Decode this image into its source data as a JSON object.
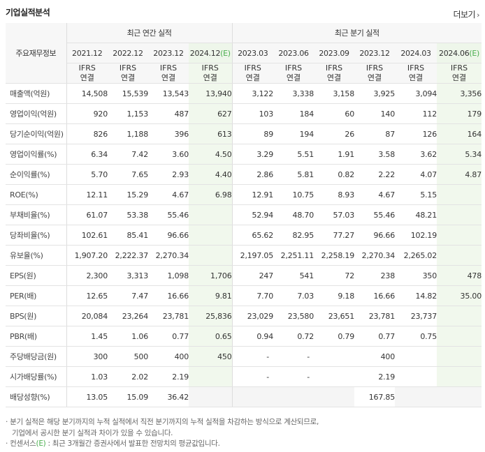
{
  "header": {
    "title": "기업실적분석",
    "more_label": "더보기"
  },
  "table": {
    "row_header_label": "주요재무정보",
    "groups": {
      "annual": "최근 연간 실적",
      "quarter": "최근 분기 실적"
    },
    "annual_periods": [
      "2021.12",
      "2022.12",
      "2023.12",
      "2024.12"
    ],
    "quarter_periods": [
      "2023.03",
      "2023.06",
      "2023.09",
      "2023.12",
      "2024.03",
      "2024.06"
    ],
    "estimate_mark": "(E)",
    "ifrs_label": "IFRS",
    "basis_label": "연결",
    "rows": [
      {
        "label": "매출액(억원)",
        "values": [
          "14,508",
          "15,539",
          "13,543",
          "13,940",
          "3,122",
          "3,338",
          "3,158",
          "3,925",
          "3,094",
          "3,356"
        ]
      },
      {
        "label": "영업이익(억원)",
        "values": [
          "920",
          "1,153",
          "487",
          "627",
          "103",
          "184",
          "60",
          "140",
          "112",
          "179"
        ]
      },
      {
        "label": "당기순이익(억원)",
        "values": [
          "826",
          "1,188",
          "396",
          "613",
          "89",
          "194",
          "26",
          "87",
          "126",
          "164"
        ]
      },
      {
        "label": "영업이익률(%)",
        "values": [
          "6.34",
          "7.42",
          "3.60",
          "4.50",
          "3.29",
          "5.51",
          "1.91",
          "3.58",
          "3.62",
          "5.34"
        ]
      },
      {
        "label": "순이익률(%)",
        "values": [
          "5.70",
          "7.65",
          "2.93",
          "4.40",
          "2.86",
          "5.81",
          "0.82",
          "2.22",
          "4.07",
          "4.87"
        ]
      },
      {
        "label": "ROE(%)",
        "values": [
          "12.11",
          "15.29",
          "4.67",
          "6.98",
          "12.91",
          "10.75",
          "8.93",
          "4.67",
          "5.15",
          ""
        ]
      },
      {
        "label": "부채비율(%)",
        "values": [
          "61.07",
          "53.38",
          "55.46",
          "",
          "52.94",
          "48.70",
          "57.03",
          "55.46",
          "48.21",
          ""
        ]
      },
      {
        "label": "당좌비율(%)",
        "values": [
          "102.61",
          "85.41",
          "96.66",
          "",
          "65.62",
          "82.95",
          "77.27",
          "96.66",
          "102.19",
          ""
        ]
      },
      {
        "label": "유보율(%)",
        "values": [
          "1,907.20",
          "2,222.37",
          "2,270.34",
          "",
          "2,197.05",
          "2,251.11",
          "2,258.19",
          "2,270.34",
          "2,265.02",
          ""
        ]
      },
      {
        "label": "EPS(원)",
        "values": [
          "2,300",
          "3,313",
          "1,098",
          "1,706",
          "247",
          "541",
          "72",
          "238",
          "350",
          "478"
        ]
      },
      {
        "label": "PER(배)",
        "values": [
          "12.65",
          "7.47",
          "16.66",
          "9.81",
          "7.70",
          "7.03",
          "9.18",
          "16.66",
          "14.82",
          "35.00"
        ]
      },
      {
        "label": "BPS(원)",
        "values": [
          "20,084",
          "23,264",
          "23,781",
          "25,836",
          "23,029",
          "23,580",
          "23,651",
          "23,781",
          "23,737",
          ""
        ]
      },
      {
        "label": "PBR(배)",
        "values": [
          "1.45",
          "1.06",
          "0.77",
          "0.65",
          "0.94",
          "0.72",
          "0.79",
          "0.77",
          "0.75",
          ""
        ]
      },
      {
        "label": "주당배당금(원)",
        "values": [
          "300",
          "500",
          "400",
          "450",
          "-",
          "-",
          "",
          "400",
          "",
          ""
        ]
      },
      {
        "label": "시가배당률(%)",
        "values": [
          "1.03",
          "2.02",
          "2.19",
          "",
          "-",
          "-",
          "",
          "2.19",
          "",
          ""
        ]
      },
      {
        "label": "배당성향(%)",
        "values": [
          "13.05",
          "15.09",
          "36.42",
          "",
          "",
          "",
          "",
          "167.85",
          "",
          ""
        ]
      }
    ]
  },
  "notes": {
    "line1": "분기 실적은 해당 분기까지의 누적 실적에서 직전 분기까지의 누적 실적을 차감하는 방식으로 계산되므로,",
    "line2": "기업에서 공시한 분기 실적과 차이가 있을 수 있습니다.",
    "line3_prefix": "컨센서스",
    "line3_mark": "(E)",
    "line3_suffix": " : 최근 3개월간 증권사에서 발표한 전망치의 평균값입니다."
  },
  "colors": {
    "ifrs": "#ff6a1a",
    "estimate_mark": "#4caf50",
    "estimate_bg": "#f1f8ed"
  }
}
